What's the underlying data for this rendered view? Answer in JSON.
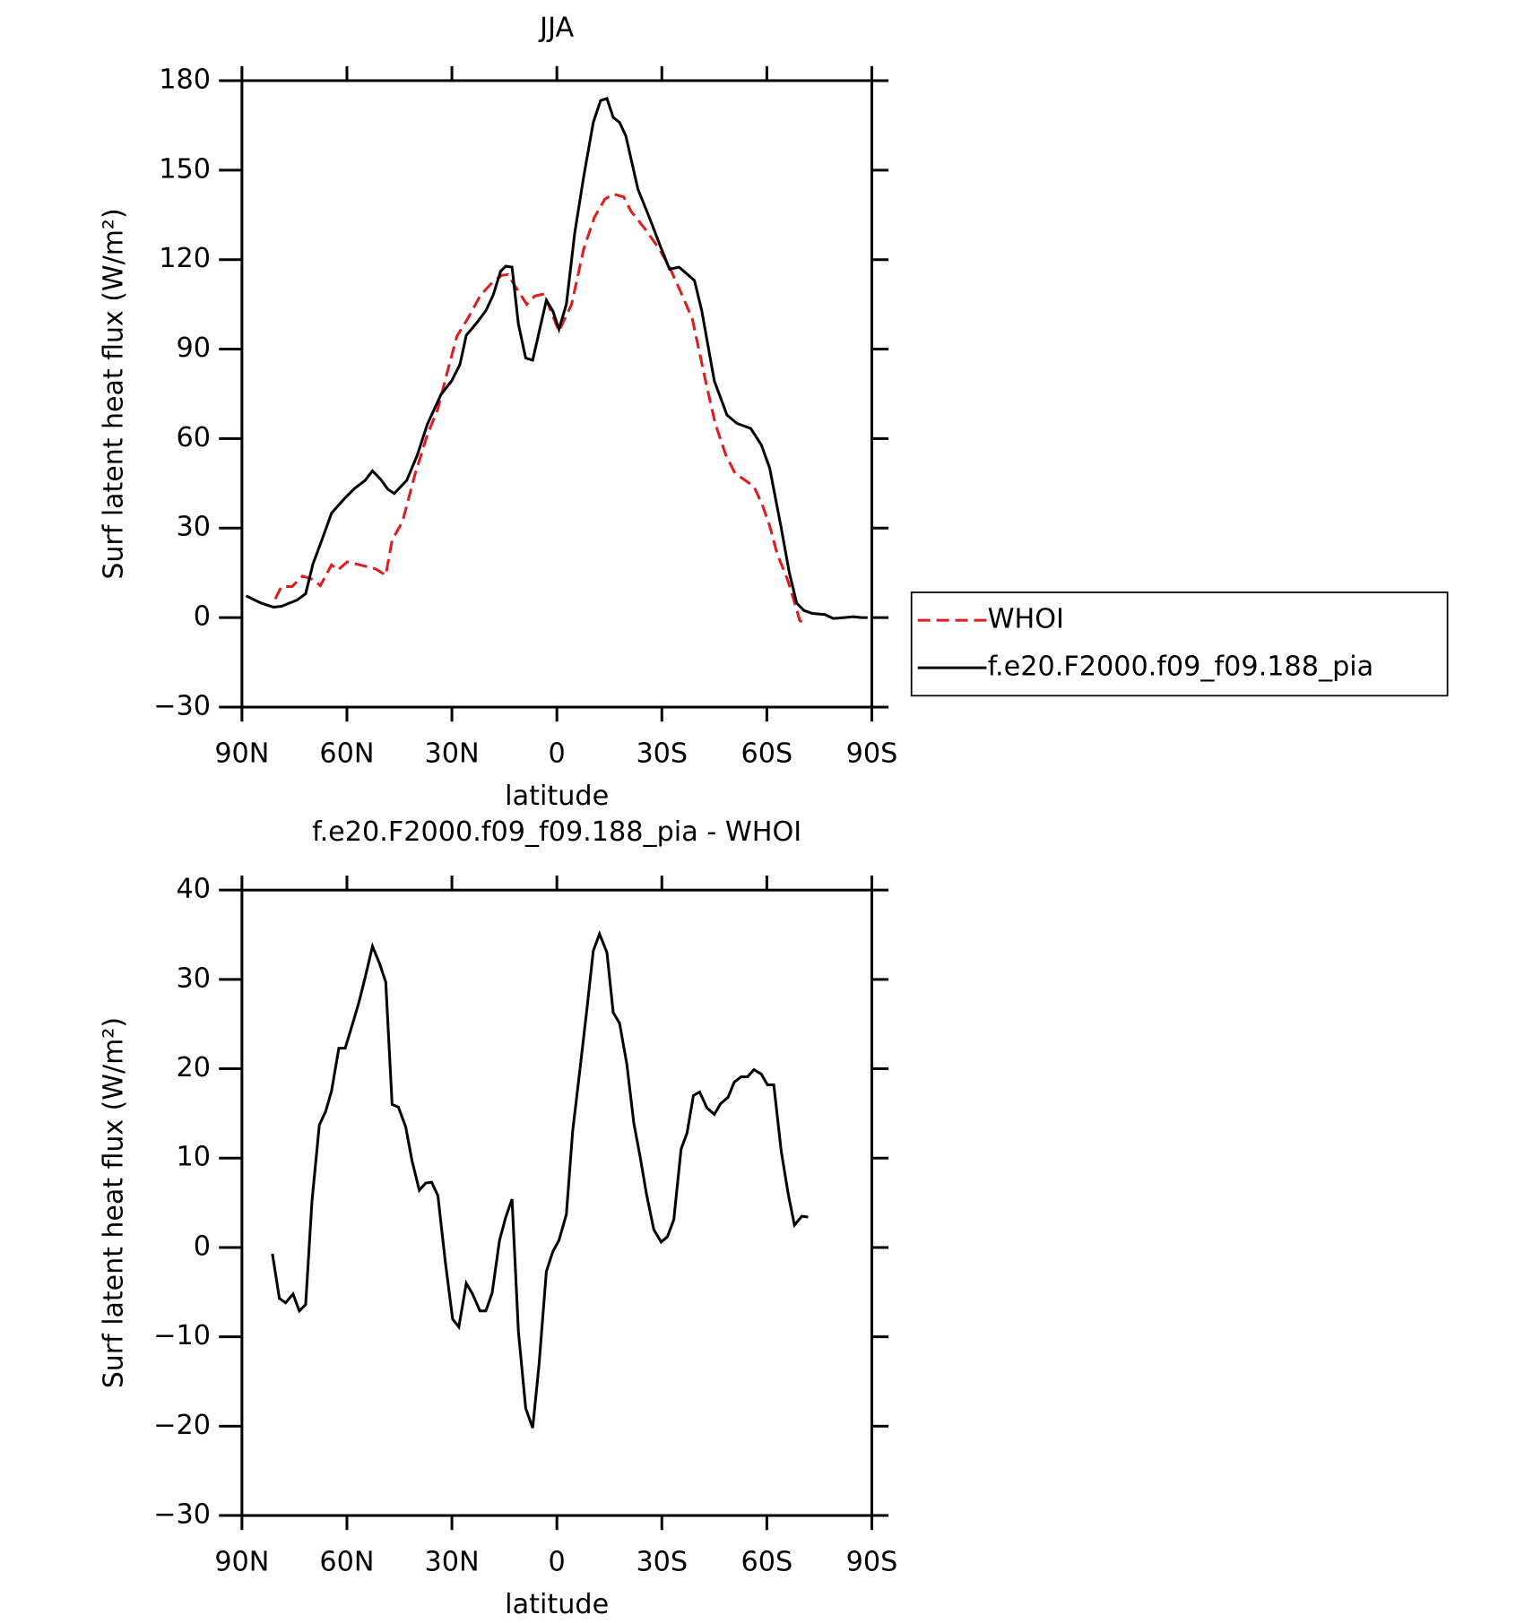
{
  "chart_data": [
    {
      "type": "line",
      "title": "JJA",
      "xlabel": "latitude",
      "ylabel": "Surf latent heat flux (W/m²)",
      "xlim": [
        90,
        -90
      ],
      "xticks": [
        {
          "value": 90,
          "label": "90N"
        },
        {
          "value": 60,
          "label": "60N"
        },
        {
          "value": 30,
          "label": "30N"
        },
        0,
        {
          "value": -30,
          "label": "30S"
        },
        {
          "value": -60,
          "label": "60S"
        },
        {
          "value": -90,
          "label": "90S"
        }
      ],
      "ylim": [
        -30,
        180
      ],
      "yticks": [
        {
          "value": -30,
          "label": "−30"
        },
        0,
        30,
        60,
        90,
        120,
        150,
        180
      ],
      "legend": "right",
      "series": [
        {
          "name": "WHOI",
          "color": "#e3191c",
          "dash": true,
          "x": [
            80.5,
            78.7,
            75.7,
            72.7,
            69.7,
            67.6,
            64.4,
            62.6,
            59.9,
            56.3,
            51.8,
            48.9,
            47.1,
            44.1,
            40.5,
            37,
            34,
            31.6,
            28.6,
            25,
            21.8,
            18.5,
            15.8,
            14,
            12.2,
            8.6,
            6.3,
            3.6,
            1.8,
            -0.6,
            -4.2,
            -7.7,
            -10.7,
            -13.7,
            -16.1,
            -19.1,
            -21.2,
            -25,
            -29.2,
            -32.2,
            -35.8,
            -38.7,
            -42.3,
            -45.3,
            -48.3,
            -51,
            -53.3,
            -56.3,
            -58.7,
            -60.8,
            -62.9,
            -65.9,
            -67.9,
            -69.4,
            -71.2
          ],
          "values": [
            6.2,
            10.4,
            10.4,
            13.9,
            12.8,
            10.7,
            17.7,
            15.9,
            18.7,
            17.7,
            16.3,
            14.2,
            26,
            32.2,
            48.2,
            61.3,
            70,
            81.1,
            94.2,
            101.2,
            108.1,
            112.3,
            114.7,
            115,
            111.6,
            105,
            107.8,
            108.5,
            102.9,
            96,
            105,
            123.7,
            134.1,
            140.3,
            142,
            141,
            136.2,
            130.6,
            123.7,
            117.5,
            108.1,
            100.1,
            80.4,
            64.8,
            54.4,
            48.2,
            46.4,
            44,
            37.8,
            30.8,
            21.5,
            12.8,
            5.2,
            -1,
            -2.1
          ]
        },
        {
          "name": "f.e20.F2000.f09_f09.188_pia",
          "color": "#000000",
          "dash": false,
          "x": [
            88.8,
            84.6,
            81,
            78.7,
            74.2,
            71.8,
            69.7,
            67.3,
            64.4,
            60.8,
            57.8,
            54.8,
            52.7,
            50.4,
            48.3,
            46.5,
            42.9,
            39.9,
            37,
            33.1,
            30.1,
            27.7,
            25.9,
            22.9,
            20.3,
            18.2,
            16.1,
            14.6,
            12.8,
            11,
            8.9,
            6.9,
            3,
            1.2,
            -0.6,
            -2.7,
            -5.1,
            -7.7,
            -10.4,
            -12.5,
            -14.3,
            -16.1,
            -17.9,
            -19.7,
            -23.2,
            -26.2,
            -29.5,
            -32.2,
            -34.9,
            -39.3,
            -41.4,
            -45,
            -48.6,
            -51.5,
            -55.4,
            -58.4,
            -60.8,
            -64.1,
            -66.4,
            -68.5,
            -70.6,
            -73,
            -76.6,
            -79,
            -82.2,
            -84.6,
            -87,
            -88.8
          ],
          "values": [
            7.3,
            4.9,
            3.5,
            3.8,
            5.9,
            8,
            18,
            25.6,
            35,
            39.8,
            43.3,
            46,
            49.2,
            46.4,
            43,
            41.6,
            46,
            54.4,
            64.8,
            74.8,
            79.3,
            84.9,
            94.6,
            98.8,
            102.9,
            108.1,
            116.1,
            117.8,
            117.5,
            98.4,
            87,
            86.3,
            106.4,
            102.9,
            96.7,
            105,
            128.9,
            148,
            166,
            173.3,
            174,
            167.7,
            166,
            161.5,
            143.5,
            134.8,
            124.7,
            116.8,
            117.5,
            113,
            102.9,
            79.3,
            67.9,
            65.1,
            63.4,
            57.9,
            50.2,
            30.1,
            15.2,
            4.9,
            2.4,
            1.4,
            1,
            -0.3,
            0,
            0.3,
            0,
            0
          ]
        }
      ]
    },
    {
      "type": "line",
      "title": "f.e20.F2000.f09_f09.188_pia - WHOI",
      "xlabel": "latitude",
      "ylabel": "Surf latent heat flux (W/m²)",
      "xlim": [
        90,
        -90
      ],
      "xticks": [
        {
          "value": 90,
          "label": "90N"
        },
        {
          "value": 60,
          "label": "60N"
        },
        {
          "value": 30,
          "label": "30N"
        },
        0,
        {
          "value": -30,
          "label": "30S"
        },
        {
          "value": -60,
          "label": "60S"
        },
        {
          "value": -90,
          "label": "90S"
        }
      ],
      "ylim": [
        -30,
        40
      ],
      "yticks": [
        {
          "value": -30,
          "label": "−30"
        },
        {
          "value": -20,
          "label": "−20"
        },
        {
          "value": -10,
          "label": "−10"
        },
        0,
        10,
        20,
        30,
        40
      ],
      "color": "#000000",
      "x": [
        81.3,
        79.3,
        77.5,
        75.4,
        73.6,
        71.8,
        70,
        67.9,
        66.1,
        64.4,
        62.3,
        60.5,
        58.7,
        56.6,
        54.8,
        52.7,
        50.7,
        48.9,
        47.1,
        45.3,
        43.2,
        41.4,
        39.3,
        37.5,
        35.8,
        34,
        31.9,
        29.8,
        28,
        25.9,
        24.1,
        22,
        20.3,
        18.5,
        16.4,
        14.6,
        12.8,
        11,
        8.9,
        6.9,
        5.1,
        3,
        1.2,
        -0.6,
        -2.7,
        -4.5,
        -6.6,
        -8.6,
        -10.4,
        -12.2,
        -14.3,
        -16.1,
        -17.9,
        -20,
        -22,
        -23.8,
        -25.6,
        -27.7,
        -29.8,
        -31.6,
        -33.4,
        -35.5,
        -37.2,
        -39,
        -40.8,
        -42.9,
        -45,
        -46.8,
        -48.9,
        -50.7,
        -52.7,
        -54.5,
        -56.3,
        -58.4,
        -60.2,
        -62,
        -64.1,
        -66.1,
        -67.9,
        -70,
        -71.8
      ],
      "values": [
        -0.7,
        -5.7,
        -6.2,
        -5.2,
        -7.1,
        -6.4,
        5.1,
        13.7,
        15.2,
        17.5,
        22.3,
        22.3,
        24.6,
        27.4,
        30.2,
        33.7,
        31.8,
        29.7,
        16,
        15.7,
        13.5,
        9.7,
        6.4,
        7.2,
        7.3,
        5.8,
        -1.6,
        -8,
        -8.9,
        -4,
        -5.2,
        -7.1,
        -7.1,
        -5.1,
        0.8,
        3.4,
        5.4,
        -9.4,
        -18,
        -20.2,
        -13.1,
        -2.7,
        -0.5,
        0.8,
        3.7,
        13,
        19.9,
        26.8,
        33.2,
        35.1,
        33,
        26.3,
        25.1,
        20.5,
        13.9,
        10.1,
        6,
        2,
        0.6,
        1.2,
        3.1,
        11,
        12.8,
        17,
        17.4,
        15.6,
        14.9,
        16.1,
        16.8,
        18.5,
        19.1,
        19.1,
        19.9,
        19.4,
        18.2,
        18.2,
        10.8,
        6,
        2.5,
        3.5,
        3.4
      ]
    }
  ]
}
